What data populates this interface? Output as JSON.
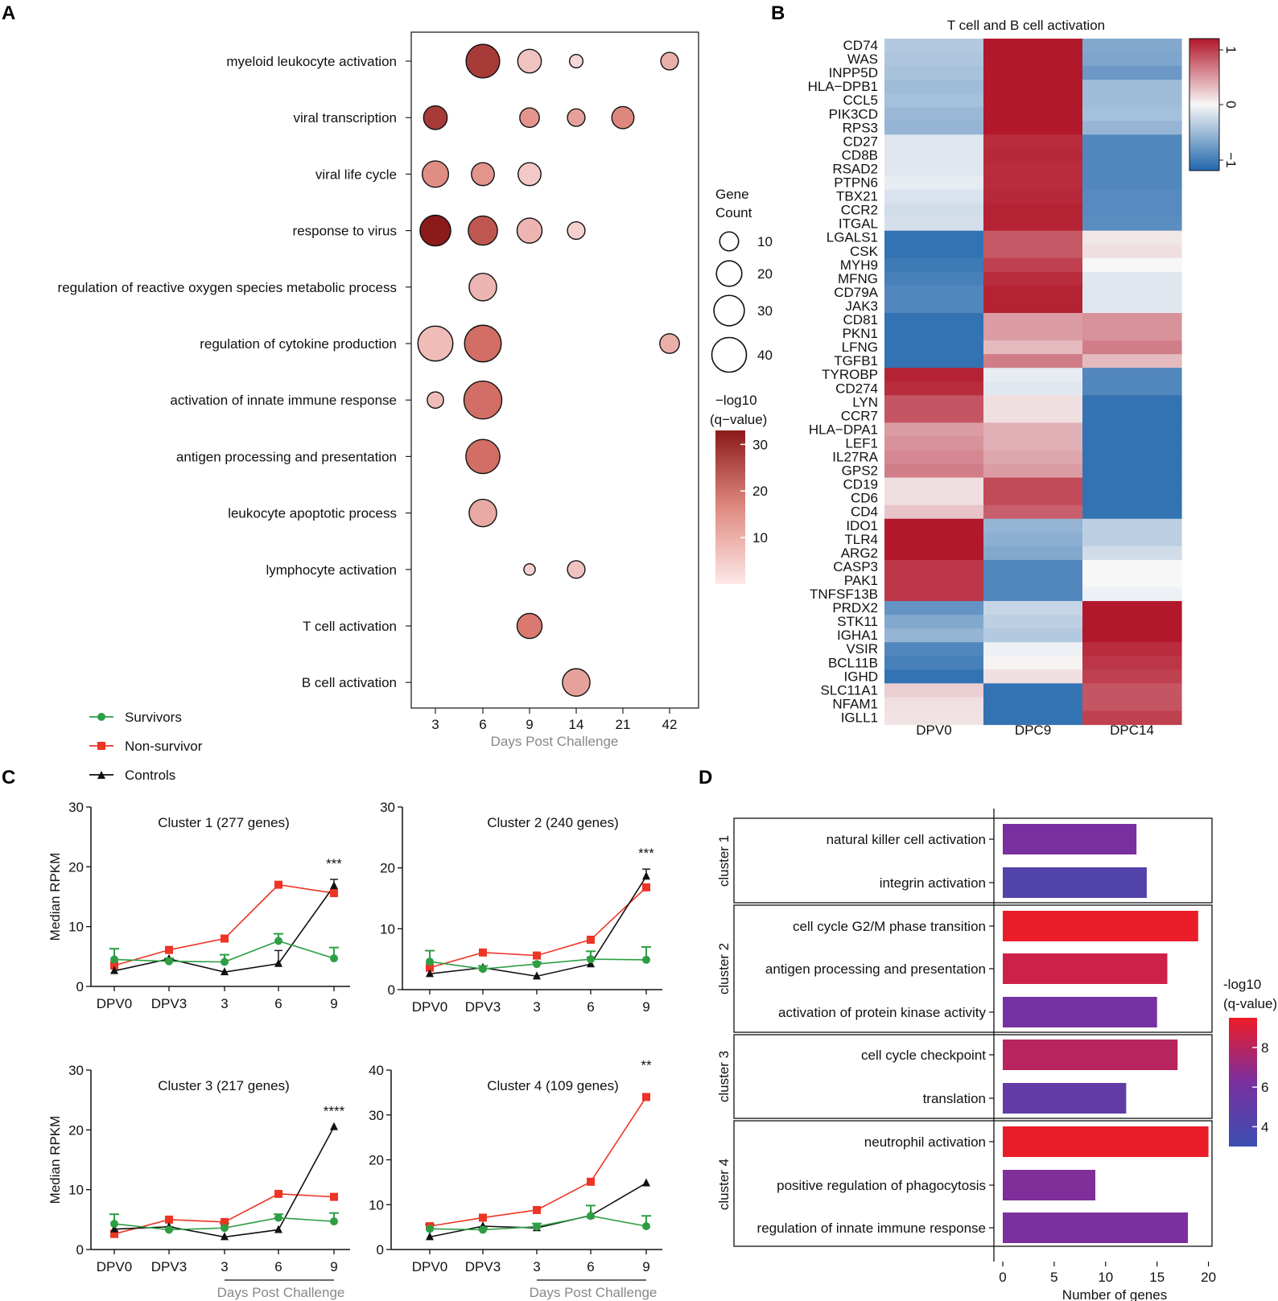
{
  "panel_labels": {
    "a": "A",
    "b": "B",
    "c": "C",
    "d": "D"
  },
  "colors": {
    "dot_low": "#f9dede",
    "dot_high": "#8b1a1a",
    "heat_low": "#2166ac",
    "heat_mid": "#f7f7f7",
    "heat_high": "#b2182b",
    "survivor": "#2e9e44",
    "nonsurvivor": "#ee3424",
    "control": "#111111",
    "bar_low": "#3b4fb0",
    "bar_mid": "#7a2fa0",
    "bar_high": "#ee1c25"
  },
  "chart_data": [
    {
      "id": "A",
      "type": "scatter",
      "xlabel": "Days Post Challenge",
      "categories": [
        "3",
        "6",
        "9",
        "14",
        "21",
        "42"
      ],
      "terms": [
        "myeloid  leukocyte activation",
        "viral transcription",
        "viral life cycle",
        "response to virus",
        "regulation of reactive oxygen species metabolic process",
        "regulation of cytokine production",
        "activation of innate immune response",
        "antigen processing and presentation",
        "leukocyte apoptotic process",
        "lymphocyte activation",
        "T cell activation",
        "B cell activation"
      ],
      "points": [
        {
          "term": 0,
          "day": "6",
          "count": 30,
          "q": 27
        },
        {
          "term": 0,
          "day": "9",
          "count": 12,
          "q": 5
        },
        {
          "term": 0,
          "day": "14",
          "count": 2,
          "q": 2
        },
        {
          "term": 0,
          "day": "42",
          "count": 5,
          "q": 8
        },
        {
          "term": 1,
          "day": "3",
          "count": 12,
          "q": 27
        },
        {
          "term": 1,
          "day": "9",
          "count": 7,
          "q": 12
        },
        {
          "term": 1,
          "day": "14",
          "count": 5,
          "q": 10
        },
        {
          "term": 1,
          "day": "21",
          "count": 10,
          "q": 14
        },
        {
          "term": 2,
          "day": "3",
          "count": 16,
          "q": 13
        },
        {
          "term": 2,
          "day": "6",
          "count": 11,
          "q": 12
        },
        {
          "term": 2,
          "day": "9",
          "count": 11,
          "q": 4
        },
        {
          "term": 3,
          "day": "3",
          "count": 24,
          "q": 33
        },
        {
          "term": 3,
          "day": "6",
          "count": 21,
          "q": 22
        },
        {
          "term": 3,
          "day": "9",
          "count": 14,
          "q": 7
        },
        {
          "term": 3,
          "day": "14",
          "count": 5,
          "q": 3
        },
        {
          "term": 4,
          "day": "6",
          "count": 18,
          "q": 7
        },
        {
          "term": 5,
          "day": "3",
          "count": 33,
          "q": 6
        },
        {
          "term": 5,
          "day": "6",
          "count": 37,
          "q": 18
        },
        {
          "term": 5,
          "day": "42",
          "count": 7,
          "q": 8
        },
        {
          "term": 6,
          "day": "3",
          "count": 4,
          "q": 6
        },
        {
          "term": 6,
          "day": "6",
          "count": 40,
          "q": 18
        },
        {
          "term": 7,
          "day": "6",
          "count": 31,
          "q": 18
        },
        {
          "term": 8,
          "day": "6",
          "count": 18,
          "q": 9
        },
        {
          "term": 9,
          "day": "9",
          "count": 1,
          "q": 3
        },
        {
          "term": 9,
          "day": "14",
          "count": 5,
          "q": 5
        },
        {
          "term": 10,
          "day": "9",
          "count": 14,
          "q": 16
        },
        {
          "term": 11,
          "day": "14",
          "count": 18,
          "q": 10
        }
      ],
      "size_legend": {
        "title1": "Gene",
        "title2": "Count",
        "values": [
          10,
          20,
          30,
          40
        ]
      },
      "color_legend": {
        "title1": "−log10",
        "title2": "(q−value)",
        "ticks": [
          30,
          20,
          10
        ],
        "range": [
          0,
          33
        ]
      }
    },
    {
      "id": "B",
      "type": "heatmap",
      "title": "T cell and B cell activation",
      "columns": [
        "DPV0",
        "DPC9",
        "DPC14"
      ],
      "genes": [
        "CD74",
        "WAS",
        "INPP5D",
        "HLA−DPB1",
        "CCL5",
        "PIK3CD",
        "RPS3",
        "CD27",
        "CD8B",
        "RSAD2",
        "PTPN6",
        "TBX21",
        "CCR2",
        "ITGAL",
        "LGALS1",
        "CSK",
        "MYH9",
        "MFNG",
        "CD79A",
        "JAK3",
        "CD81",
        "PKN1",
        "LFNG",
        "TGFB1",
        "TYROBP",
        "CD274",
        "LYN",
        "CCR7",
        "HLA−DPA1",
        "LEF1",
        "IL27RA",
        "GPS2",
        "CD19",
        "CD6",
        "CD4",
        "IDO1",
        "TLR4",
        "ARG2",
        "CASP3",
        "PAK1",
        "TNFSF13B",
        "PRDX2",
        "STK11",
        "IGHA1",
        "VSIR",
        "BCL11B",
        "IGHD",
        "SLC11A1",
        "NFAM1",
        "IGLL1"
      ],
      "values": [
        [
          -0.35,
          1.1,
          -0.6
        ],
        [
          -0.38,
          1.1,
          -0.62
        ],
        [
          -0.4,
          1.1,
          -0.72
        ],
        [
          -0.45,
          1.1,
          -0.45
        ],
        [
          -0.42,
          1.1,
          -0.45
        ],
        [
          -0.48,
          1.1,
          -0.42
        ],
        [
          -0.5,
          1.1,
          -0.5
        ],
        [
          -0.12,
          1.0,
          -0.85
        ],
        [
          -0.12,
          1.02,
          -0.85
        ],
        [
          -0.12,
          1.0,
          -0.85
        ],
        [
          -0.08,
          1.0,
          -0.85
        ],
        [
          -0.15,
          1.02,
          -0.82
        ],
        [
          -0.2,
          1.05,
          -0.82
        ],
        [
          -0.18,
          1.05,
          -0.8
        ],
        [
          -1.0,
          0.78,
          0.08
        ],
        [
          -1.0,
          0.78,
          0.12
        ],
        [
          -0.95,
          0.9,
          0.0
        ],
        [
          -0.9,
          1.0,
          -0.12
        ],
        [
          -0.85,
          1.05,
          -0.12
        ],
        [
          -0.85,
          1.05,
          -0.12
        ],
        [
          -1.0,
          0.45,
          0.5
        ],
        [
          -1.0,
          0.45,
          0.5
        ],
        [
          -1.0,
          0.3,
          0.6
        ],
        [
          -1.0,
          0.6,
          0.3
        ],
        [
          1.05,
          -0.08,
          -0.85
        ],
        [
          1.0,
          -0.12,
          -0.85
        ],
        [
          0.8,
          0.12,
          -1.0
        ],
        [
          0.8,
          0.12,
          -1.0
        ],
        [
          0.45,
          0.35,
          -1.0
        ],
        [
          0.5,
          0.35,
          -1.0
        ],
        [
          0.55,
          0.4,
          -1.0
        ],
        [
          0.6,
          0.45,
          -1.0
        ],
        [
          0.12,
          0.85,
          -1.0
        ],
        [
          0.12,
          0.85,
          -1.0
        ],
        [
          0.25,
          0.75,
          -1.0
        ],
        [
          1.1,
          -0.5,
          -0.3
        ],
        [
          1.1,
          -0.55,
          -0.3
        ],
        [
          1.1,
          -0.6,
          -0.2
        ],
        [
          0.95,
          -0.85,
          0.0
        ],
        [
          0.95,
          -0.85,
          0.0
        ],
        [
          0.95,
          -0.85,
          -0.05
        ],
        [
          -0.75,
          -0.25,
          1.1
        ],
        [
          -0.6,
          -0.3,
          1.1
        ],
        [
          -0.5,
          -0.35,
          1.1
        ],
        [
          -0.85,
          -0.05,
          1.0
        ],
        [
          -0.9,
          0.02,
          0.95
        ],
        [
          -1.0,
          0.12,
          0.9
        ],
        [
          0.2,
          -1.0,
          0.8
        ],
        [
          0.12,
          -1.0,
          0.8
        ],
        [
          0.1,
          -1.0,
          0.9
        ]
      ],
      "legend_ticks": [
        "1",
        "0",
        "−1"
      ]
    },
    {
      "id": "C",
      "type": "line",
      "ylabel": "Median RPKM",
      "xlabel": "Days Post Challenge",
      "categories": [
        "DPV0",
        "DPV3",
        "3",
        "6",
        "9"
      ],
      "legend": [
        "Survivors",
        "Non-survivor",
        "Controls"
      ],
      "subplots": [
        {
          "title": "Cluster 1 (277 genes)",
          "ylim": [
            0,
            30
          ],
          "yticks": [
            0,
            10,
            20,
            30
          ],
          "sig": "***",
          "survivors": [
            4.5,
            4.2,
            4.1,
            7.6,
            4.7
          ],
          "surv_err": [
            1.8,
            0.5,
            1.2,
            1.2,
            1.8
          ],
          "nonsurvivor": [
            3.5,
            6.1,
            8.0,
            17.0,
            15.6
          ],
          "controls": [
            2.6,
            4.6,
            2.4,
            3.8,
            16.8
          ],
          "ctrl_err": [
            0,
            0,
            0,
            2.2,
            1.1
          ]
        },
        {
          "title": "Cluster 2 (240 genes)",
          "ylim": [
            0,
            30
          ],
          "yticks": [
            0,
            10,
            20,
            30
          ],
          "sig": "***",
          "survivors": [
            4.6,
            3.4,
            4.2,
            5.0,
            4.9
          ],
          "surv_err": [
            1.8,
            0.5,
            0.3,
            1.3,
            2.1
          ],
          "nonsurvivor": [
            3.6,
            6.1,
            5.6,
            8.2,
            16.8
          ],
          "controls": [
            2.6,
            3.6,
            2.2,
            4.2,
            18.6
          ],
          "ctrl_err": [
            0,
            0,
            0,
            1.1,
            1.2
          ]
        },
        {
          "title": "Cluster 3 (217 genes)",
          "ylim": [
            0,
            30
          ],
          "yticks": [
            0,
            10,
            20,
            30
          ],
          "sig": "****",
          "survivors": [
            4.3,
            3.3,
            3.6,
            5.3,
            4.7
          ],
          "surv_err": [
            1.6,
            0.5,
            0.8,
            0.6,
            1.4
          ],
          "nonsurvivor": [
            2.6,
            5.0,
            4.6,
            9.3,
            8.8
          ],
          "controls": [
            3.4,
            3.8,
            2.1,
            3.3,
            20.5
          ],
          "ctrl_err": [
            0,
            0,
            0,
            0,
            0
          ]
        },
        {
          "title": "Cluster 4 (109 genes)",
          "ylim": [
            0,
            40
          ],
          "yticks": [
            0,
            10,
            20,
            30,
            40
          ],
          "sig": "**",
          "survivors": [
            4.6,
            4.4,
            5.1,
            7.5,
            5.2
          ],
          "surv_err": [
            1.0,
            0.4,
            0.7,
            2.3,
            2.3
          ],
          "nonsurvivor": [
            5.2,
            7.1,
            8.8,
            15.1,
            34.0
          ],
          "controls": [
            2.8,
            5.2,
            4.8,
            7.6,
            14.8
          ],
          "ctrl_err": [
            0,
            0,
            0,
            0,
            0
          ]
        }
      ]
    },
    {
      "id": "D",
      "type": "bar",
      "xlabel": "Number of genes",
      "xlim": [
        0,
        20
      ],
      "xticks": [
        0,
        5,
        10,
        15,
        20
      ],
      "legend_title1": "-log10",
      "legend_title2": "(q-value)",
      "legend_ticks": [
        8,
        6,
        4
      ],
      "color_range": [
        3,
        9.5
      ],
      "groups": [
        {
          "name": "cluster 1",
          "bars": [
            {
              "label": "natural killer cell activation",
              "value": 13,
              "q": 6.2
            },
            {
              "label": "integrin activation",
              "value": 14,
              "q": 4.2
            }
          ]
        },
        {
          "name": "cluster 2",
          "bars": [
            {
              "label": "cell cycle G2/M phase transition",
              "value": 19,
              "q": 9.4
            },
            {
              "label": "antigen processing and presentation",
              "value": 16,
              "q": 8.6
            },
            {
              "label": "activation of protein kinase activity",
              "value": 15,
              "q": 6.0
            }
          ]
        },
        {
          "name": "cluster 3",
          "bars": [
            {
              "label": "cell cycle checkpoint",
              "value": 17,
              "q": 8.0
            },
            {
              "label": "translation",
              "value": 12,
              "q": 5.0
            }
          ]
        },
        {
          "name": "cluster 4",
          "bars": [
            {
              "label": "neutrophil activation",
              "value": 20,
              "q": 9.4
            },
            {
              "label": "positive regulation of phagocytosis",
              "value": 9,
              "q": 6.4
            },
            {
              "label": "regulation of innate immune response",
              "value": 18,
              "q": 6.3
            }
          ]
        }
      ]
    }
  ]
}
